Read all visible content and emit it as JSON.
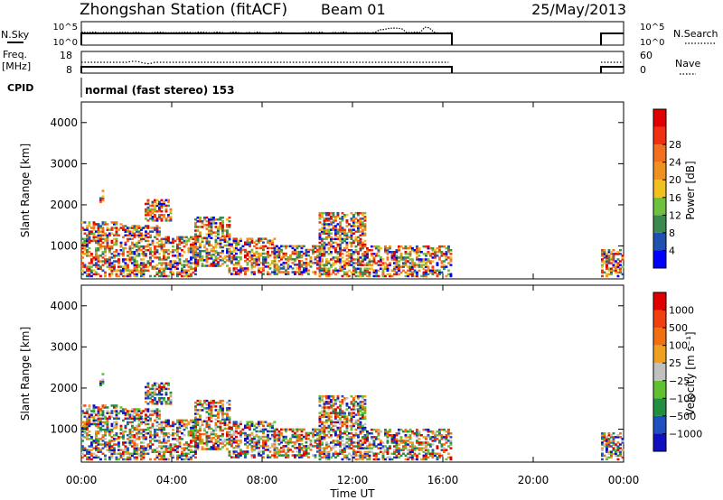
{
  "header": {
    "station": "Zhongshan Station (fitACF)",
    "beam": "Beam 01",
    "date": "25/May/2013"
  },
  "strips": {
    "nsky_label": "N.Sky",
    "nsky_ticks": [
      "10^5",
      "10^0"
    ],
    "nsearch_label": "N.Search",
    "nsearch_ticks": [
      "10^5",
      "10^0"
    ],
    "freq_label_1": "Freq.",
    "freq_label_2": "[MHz]",
    "freq_ticks": [
      "18",
      "8"
    ],
    "nave_label": "Nave",
    "nave_ticks": [
      "60",
      "0"
    ],
    "cpid_label": "CPID",
    "cpid_value": "normal (fast stereo) 153"
  },
  "colors": {
    "power": [
      "#0000ff",
      "#2050b0",
      "#3a8a50",
      "#70c040",
      "#f0c020",
      "#f09020",
      "#f07020",
      "#f03010",
      "#e00000"
    ],
    "velocity": [
      "#e00000",
      "#f04010",
      "#f07010",
      "#f0a020",
      "#c0c0c0",
      "#60c030",
      "#209040",
      "#2050c0",
      "#1010c0"
    ],
    "axis": "#000000"
  },
  "chart_data": [
    {
      "type": "heatmap",
      "name": "power",
      "xlabel": "",
      "ylabel": "Slant Range [km]",
      "xlim": [
        0,
        24
      ],
      "ylim": [
        200,
        4500
      ],
      "yticks": [
        "1000",
        "2000",
        "3000",
        "4000"
      ],
      "colorbar_label": "Power [dB]",
      "colorbar_ticks": [
        "4",
        "8",
        "12",
        "16",
        "20",
        "24",
        "28"
      ],
      "echo_regions": [
        {
          "t0": 0.0,
          "t1": 1.8,
          "r0": 250,
          "r1": 1600
        },
        {
          "t0": 0.8,
          "t1": 1.0,
          "r0": 2050,
          "r1": 2350
        },
        {
          "t0": 1.8,
          "t1": 3.5,
          "r0": 250,
          "r1": 1500
        },
        {
          "t0": 2.8,
          "t1": 4.0,
          "r0": 1600,
          "r1": 2100
        },
        {
          "t0": 3.5,
          "t1": 5.0,
          "r0": 250,
          "r1": 1200
        },
        {
          "t0": 5.0,
          "t1": 6.5,
          "r0": 500,
          "r1": 1700
        },
        {
          "t0": 6.5,
          "t1": 8.5,
          "r0": 300,
          "r1": 1200
        },
        {
          "t0": 8.5,
          "t1": 10.5,
          "r0": 300,
          "r1": 1000
        },
        {
          "t0": 10.5,
          "t1": 12.5,
          "r0": 250,
          "r1": 1800
        },
        {
          "t0": 12.5,
          "t1": 14.5,
          "r0": 250,
          "r1": 1000
        },
        {
          "t0": 14.5,
          "t1": 16.4,
          "r0": 250,
          "r1": 1000
        },
        {
          "t0": 23.0,
          "t1": 24.0,
          "r0": 250,
          "r1": 900
        }
      ]
    },
    {
      "type": "heatmap",
      "name": "velocity",
      "xlabel": "Time UT",
      "ylabel": "Slant Range [km]",
      "xlim": [
        0,
        24
      ],
      "ylim": [
        200,
        4500
      ],
      "xticks": [
        "00:00",
        "04:00",
        "08:00",
        "12:00",
        "16:00",
        "20:00",
        "00:00"
      ],
      "yticks": [
        "1000",
        "2000",
        "3000",
        "4000"
      ],
      "colorbar_label": "Velocity [m s⁻¹]",
      "colorbar_ticks": [
        "1000",
        "500",
        "100",
        "25",
        "−25",
        "−100",
        "−500",
        "−1000"
      ],
      "echo_regions": [
        {
          "t0": 0.0,
          "t1": 1.8,
          "r0": 250,
          "r1": 1600
        },
        {
          "t0": 0.8,
          "t1": 1.0,
          "r0": 2050,
          "r1": 2350
        },
        {
          "t0": 1.8,
          "t1": 3.5,
          "r0": 250,
          "r1": 1500
        },
        {
          "t0": 2.8,
          "t1": 4.0,
          "r0": 1600,
          "r1": 2100
        },
        {
          "t0": 3.5,
          "t1": 5.0,
          "r0": 250,
          "r1": 1200
        },
        {
          "t0": 5.0,
          "t1": 6.5,
          "r0": 500,
          "r1": 1700
        },
        {
          "t0": 6.5,
          "t1": 8.5,
          "r0": 300,
          "r1": 1200
        },
        {
          "t0": 8.5,
          "t1": 10.5,
          "r0": 300,
          "r1": 1000
        },
        {
          "t0": 10.5,
          "t1": 12.5,
          "r0": 250,
          "r1": 1800
        },
        {
          "t0": 12.5,
          "t1": 14.5,
          "r0": 250,
          "r1": 1000
        },
        {
          "t0": 14.5,
          "t1": 16.4,
          "r0": 250,
          "r1": 1000
        },
        {
          "t0": 23.0,
          "t1": 24.0,
          "r0": 250,
          "r1": 900
        }
      ]
    }
  ]
}
